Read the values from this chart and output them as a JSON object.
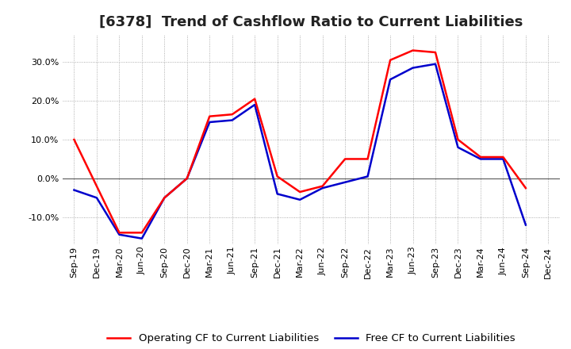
{
  "title": "[6378]  Trend of Cashflow Ratio to Current Liabilities",
  "labels": [
    "Sep-19",
    "Dec-19",
    "Mar-20",
    "Jun-20",
    "Sep-20",
    "Dec-20",
    "Mar-21",
    "Jun-21",
    "Sep-21",
    "Dec-21",
    "Mar-22",
    "Jun-22",
    "Sep-22",
    "Dec-22",
    "Mar-23",
    "Jun-23",
    "Sep-23",
    "Dec-23",
    "Mar-24",
    "Jun-24",
    "Sep-24",
    "Dec-24"
  ],
  "operating_cf": [
    10.0,
    -2.0,
    -14.0,
    -14.0,
    -5.0,
    0.0,
    16.0,
    16.5,
    20.5,
    0.5,
    -3.5,
    -2.0,
    5.0,
    5.0,
    30.5,
    33.0,
    32.5,
    10.0,
    5.5,
    5.5,
    -2.5,
    null
  ],
  "free_cf": [
    -3.0,
    -5.0,
    -14.5,
    -15.5,
    -5.0,
    0.0,
    14.5,
    15.0,
    19.0,
    -4.0,
    -5.5,
    -2.5,
    -1.0,
    0.5,
    25.5,
    28.5,
    29.5,
    8.0,
    5.0,
    5.0,
    -12.0,
    null
  ],
  "ylim": [
    -17,
    37
  ],
  "yticks": [
    -10.0,
    0.0,
    10.0,
    20.0,
    30.0
  ],
  "operating_color": "#FF0000",
  "free_color": "#0000CC",
  "background_color": "#FFFFFF",
  "plot_bg_color": "#FFFFFF",
  "grid_color": "#999999",
  "linewidth": 1.8,
  "title_fontsize": 13,
  "legend_fontsize": 9.5,
  "tick_fontsize": 8
}
